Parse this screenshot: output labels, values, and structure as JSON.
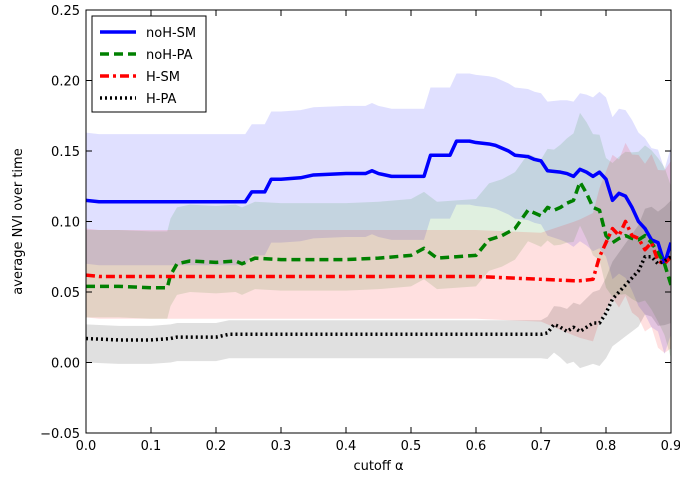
{
  "chart_data": {
    "type": "line",
    "title": "",
    "xlabel": "cutoff α",
    "ylabel": "average NVI over time",
    "xlim": [
      0,
      0.9
    ],
    "ylim": [
      -0.05,
      0.25
    ],
    "xticks": [
      "0.0",
      "0.1",
      "0.2",
      "0.3",
      "0.4",
      "0.5",
      "0.6",
      "0.7",
      "0.8",
      "0.9"
    ],
    "yticks": [
      "−0.05",
      "0.00",
      "0.05",
      "0.10",
      "0.15",
      "0.20",
      "0.25"
    ],
    "grid": false,
    "legend_position": "top-left",
    "series": [
      {
        "name": "noH-SM",
        "color": "#0000ff",
        "style": "solid",
        "x": [
          0.0,
          0.02,
          0.05,
          0.1,
          0.15,
          0.2,
          0.245,
          0.255,
          0.275,
          0.285,
          0.3,
          0.33,
          0.35,
          0.4,
          0.43,
          0.44,
          0.45,
          0.47,
          0.52,
          0.53,
          0.54,
          0.56,
          0.57,
          0.59,
          0.6,
          0.62,
          0.63,
          0.65,
          0.66,
          0.68,
          0.69,
          0.7,
          0.71,
          0.73,
          0.74,
          0.75,
          0.76,
          0.77,
          0.78,
          0.79,
          0.8,
          0.81,
          0.82,
          0.83,
          0.84,
          0.85,
          0.86,
          0.87,
          0.88,
          0.89,
          0.9
        ],
        "y": [
          0.115,
          0.114,
          0.114,
          0.114,
          0.114,
          0.114,
          0.114,
          0.121,
          0.121,
          0.13,
          0.13,
          0.131,
          0.133,
          0.134,
          0.134,
          0.136,
          0.134,
          0.132,
          0.132,
          0.147,
          0.147,
          0.147,
          0.157,
          0.157,
          0.156,
          0.155,
          0.154,
          0.15,
          0.147,
          0.146,
          0.144,
          0.143,
          0.136,
          0.135,
          0.134,
          0.132,
          0.137,
          0.135,
          0.132,
          0.135,
          0.13,
          0.115,
          0.12,
          0.118,
          0.11,
          0.1,
          0.095,
          0.087,
          0.085,
          0.07,
          0.085
        ]
      },
      {
        "name": "noH-PA",
        "color": "#008000",
        "style": "dashed",
        "x": [
          0.0,
          0.05,
          0.1,
          0.125,
          0.13,
          0.14,
          0.16,
          0.2,
          0.23,
          0.24,
          0.26,
          0.3,
          0.32,
          0.35,
          0.4,
          0.45,
          0.5,
          0.52,
          0.54,
          0.57,
          0.6,
          0.62,
          0.64,
          0.66,
          0.68,
          0.69,
          0.7,
          0.71,
          0.72,
          0.73,
          0.74,
          0.75,
          0.76,
          0.77,
          0.78,
          0.79,
          0.8,
          0.81,
          0.82,
          0.83,
          0.84,
          0.85,
          0.86,
          0.87,
          0.88,
          0.89,
          0.9
        ],
        "y": [
          0.054,
          0.054,
          0.053,
          0.053,
          0.062,
          0.07,
          0.072,
          0.071,
          0.072,
          0.07,
          0.074,
          0.073,
          0.073,
          0.073,
          0.073,
          0.074,
          0.076,
          0.081,
          0.074,
          0.075,
          0.076,
          0.087,
          0.09,
          0.095,
          0.108,
          0.106,
          0.104,
          0.11,
          0.108,
          0.11,
          0.113,
          0.115,
          0.128,
          0.12,
          0.11,
          0.108,
          0.09,
          0.085,
          0.088,
          0.09,
          0.088,
          0.087,
          0.09,
          0.085,
          0.078,
          0.07,
          0.055
        ]
      },
      {
        "name": "H-SM",
        "color": "#ff0000",
        "style": "dashdot",
        "x": [
          0.0,
          0.02,
          0.05,
          0.1,
          0.2,
          0.3,
          0.4,
          0.5,
          0.6,
          0.65,
          0.7,
          0.75,
          0.76,
          0.78,
          0.79,
          0.795,
          0.8,
          0.81,
          0.82,
          0.83,
          0.84,
          0.85,
          0.86,
          0.87,
          0.88,
          0.89,
          0.9
        ],
        "y": [
          0.062,
          0.061,
          0.061,
          0.061,
          0.061,
          0.061,
          0.061,
          0.061,
          0.061,
          0.06,
          0.059,
          0.058,
          0.058,
          0.059,
          0.075,
          0.08,
          0.085,
          0.095,
          0.09,
          0.1,
          0.09,
          0.088,
          0.08,
          0.085,
          0.072,
          0.07,
          0.075
        ]
      },
      {
        "name": "H-PA",
        "color": "#000000",
        "style": "dotted",
        "x": [
          0.0,
          0.05,
          0.1,
          0.13,
          0.14,
          0.2,
          0.22,
          0.25,
          0.3,
          0.4,
          0.5,
          0.6,
          0.65,
          0.7,
          0.71,
          0.72,
          0.73,
          0.74,
          0.75,
          0.76,
          0.77,
          0.78,
          0.79,
          0.8,
          0.81,
          0.82,
          0.83,
          0.84,
          0.85,
          0.86,
          0.87,
          0.88,
          0.89,
          0.9
        ],
        "y": [
          0.017,
          0.016,
          0.016,
          0.017,
          0.018,
          0.018,
          0.02,
          0.02,
          0.02,
          0.02,
          0.02,
          0.02,
          0.02,
          0.02,
          0.021,
          0.027,
          0.025,
          0.022,
          0.025,
          0.022,
          0.025,
          0.028,
          0.028,
          0.035,
          0.045,
          0.05,
          0.055,
          0.06,
          0.065,
          0.075,
          0.075,
          0.07,
          0.072,
          0.075
        ]
      }
    ]
  }
}
